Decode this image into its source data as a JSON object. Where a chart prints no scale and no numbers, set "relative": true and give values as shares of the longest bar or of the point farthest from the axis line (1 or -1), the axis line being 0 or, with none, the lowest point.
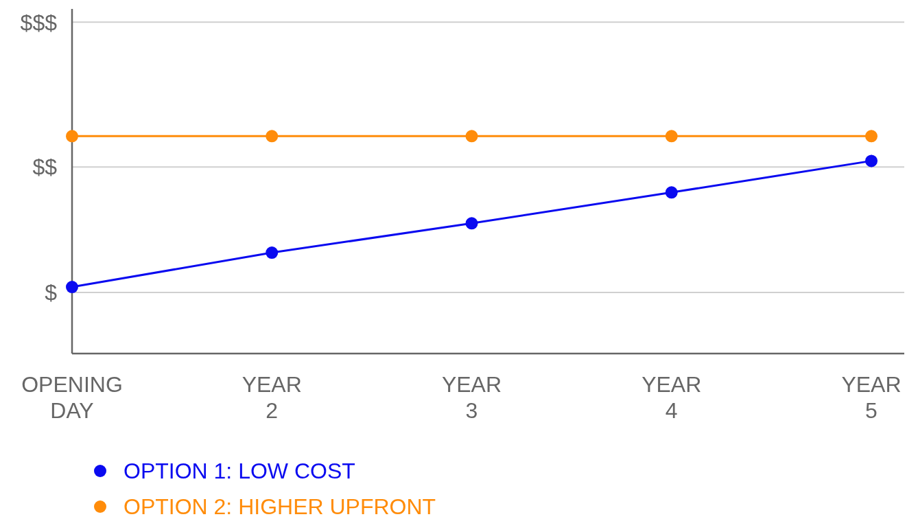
{
  "chart_data": {
    "type": "line",
    "categories": [
      "OPENING DAY",
      "YEAR 2",
      "YEAR 3",
      "YEAR 4",
      "YEAR 5"
    ],
    "series": [
      {
        "name": "OPTION 1: LOW COST",
        "color": "#0a0af0",
        "values": [
          0.306,
          0.464,
          0.599,
          0.741,
          0.886
        ]
      },
      {
        "name": "OPTION 2: HIGHER UPFRONT",
        "color": "#ff8c0a",
        "values": [
          1,
          1,
          1,
          1,
          1
        ]
      }
    ],
    "relative": true,
    "ref_lines": [
      {
        "axis": "y",
        "value": 0.281,
        "label": "$",
        "color": "#d0d0d0"
      },
      {
        "axis": "y",
        "value": 0.858,
        "label": "$$",
        "color": "#d0d0d0"
      },
      {
        "axis": "y",
        "value": 1.524,
        "label": "$$$",
        "color": "#d0d0d0"
      }
    ],
    "legend": "bottom left",
    "marker": "circle",
    "line_style": "solid"
  }
}
